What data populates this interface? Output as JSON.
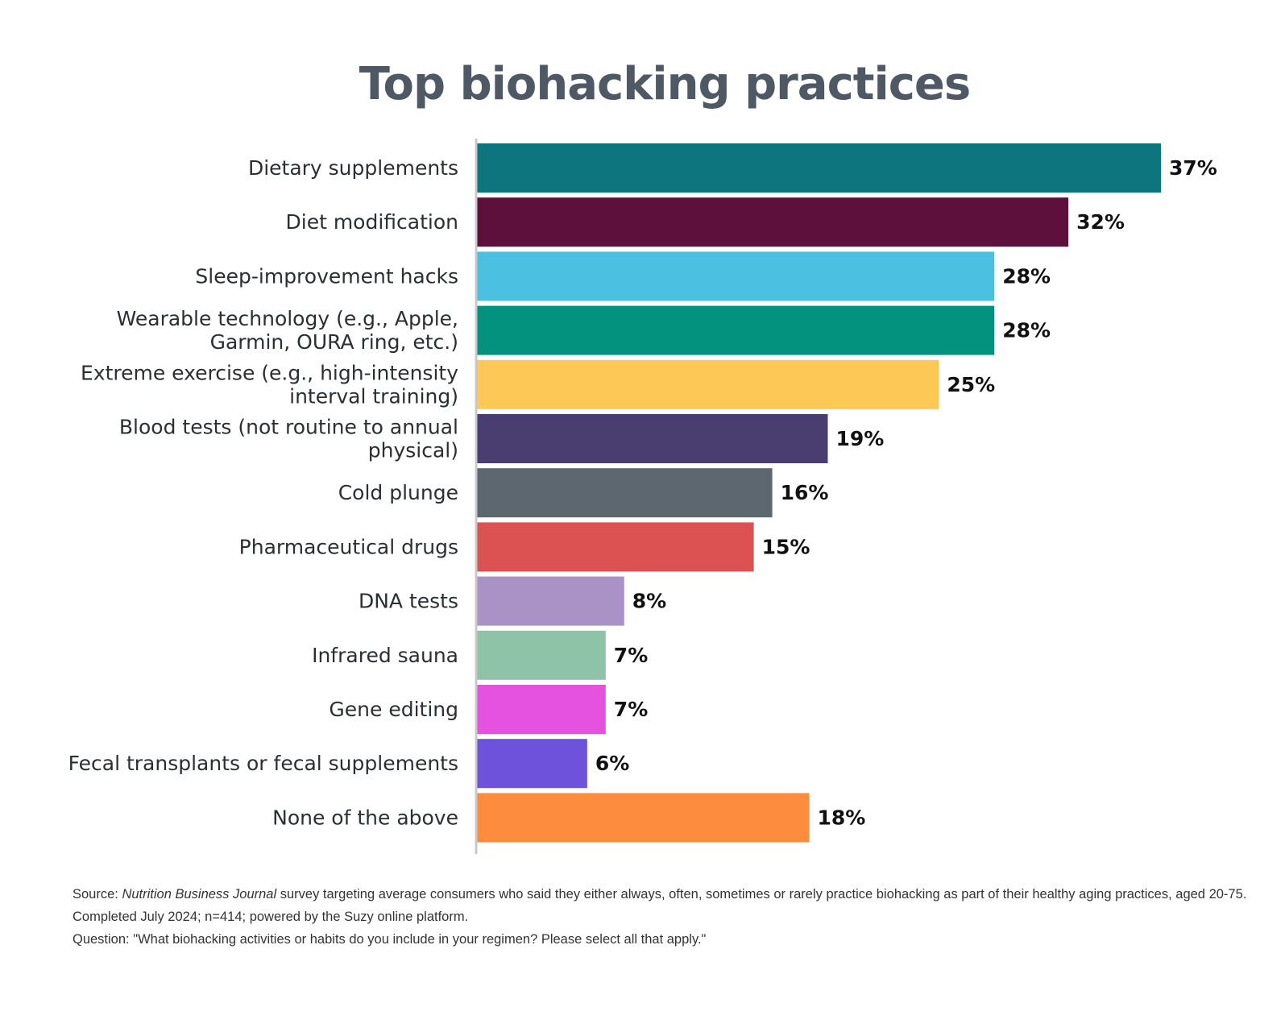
{
  "chart_data": {
    "type": "bar",
    "orientation": "horizontal",
    "title": "Top biohacking practices",
    "categories": [
      [
        "Dietary supplements"
      ],
      [
        "Diet modification"
      ],
      [
        "Sleep-improvement hacks"
      ],
      [
        "Wearable technology (e.g., Apple,",
        "Garmin, OURA ring, etc.)"
      ],
      [
        "Extreme exercise (e.g., high-intensity",
        "interval training)"
      ],
      [
        "Blood tests (not routine to annual",
        "physical)"
      ],
      [
        "Cold plunge"
      ],
      [
        "Pharmaceutical drugs"
      ],
      [
        "DNA tests"
      ],
      [
        "Infrared sauna"
      ],
      [
        "Gene editing"
      ],
      [
        "Fecal transplants or fecal supplements"
      ],
      [
        "None of the above"
      ]
    ],
    "values": [
      37,
      32,
      28,
      28,
      25,
      19,
      16,
      15,
      8,
      7,
      7,
      6,
      18
    ],
    "value_labels": [
      "37%",
      "32%",
      "28%",
      "28%",
      "25%",
      "19%",
      "16%",
      "15%",
      "8%",
      "7%",
      "7%",
      "6%",
      "18%"
    ],
    "colors": [
      "#0c757d",
      "#5e103d",
      "#4bc0e0",
      "#03927e",
      "#fdc856",
      "#4a3d70",
      "#5d6770",
      "#dc5253",
      "#ab92c6",
      "#8fc3a8",
      "#e452df",
      "#6e52dc",
      "#fd8c3f"
    ],
    "xlim": [
      0,
      37
    ],
    "grid": false,
    "legend": "none"
  },
  "footnote": {
    "source_prefix": "Source: ",
    "source_publication": "Nutrition Business Journal",
    "source_rest": " survey targeting average consumers who said they either always, often, sometimes or rarely practice biohacking as part of their healthy aging practices, aged 20-75. Completed July 2024;  n=414; powered by the Suzy online platform.",
    "question": "Question: \"What biohacking activities or habits do you include in your regimen? Please select all that apply.\""
  }
}
